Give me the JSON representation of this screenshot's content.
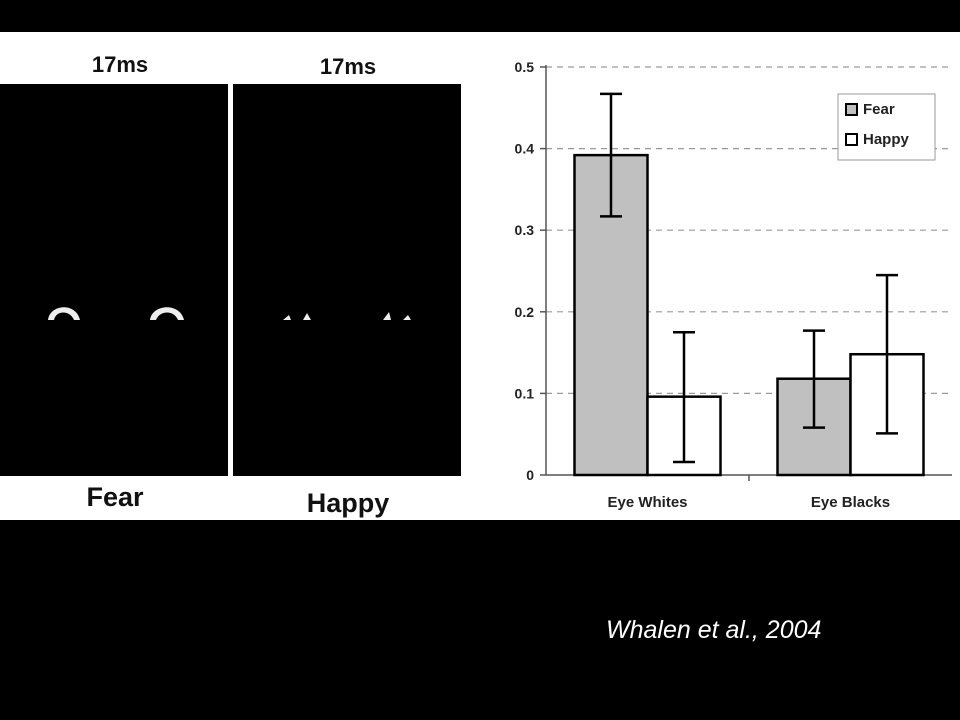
{
  "stimuli": {
    "panels": [
      {
        "duration": "17ms",
        "label": "Fear"
      },
      {
        "duration": "17ms",
        "label": "Happy"
      }
    ]
  },
  "citation": "Whalen et al., 2004",
  "chart_data": {
    "type": "bar",
    "categories": [
      "Eye Whites",
      "Eye Blacks"
    ],
    "series": [
      {
        "name": "Fear",
        "color": "#c0c0c0",
        "values": [
          0.392,
          0.118
        ],
        "error_low": [
          0.317,
          0.058
        ],
        "error_high": [
          0.467,
          0.177
        ]
      },
      {
        "name": "Happy",
        "color": "#ffffff",
        "values": [
          0.096,
          0.148
        ],
        "error_low": [
          0.016,
          0.051
        ],
        "error_high": [
          0.175,
          0.245
        ]
      }
    ],
    "yticks": [
      "0",
      "0.1",
      "0.2",
      "0.3",
      "0.4",
      "0.5"
    ],
    "ylim": [
      0,
      0.5
    ],
    "grid": "dashed-horizontal",
    "legend": "top-right"
  }
}
